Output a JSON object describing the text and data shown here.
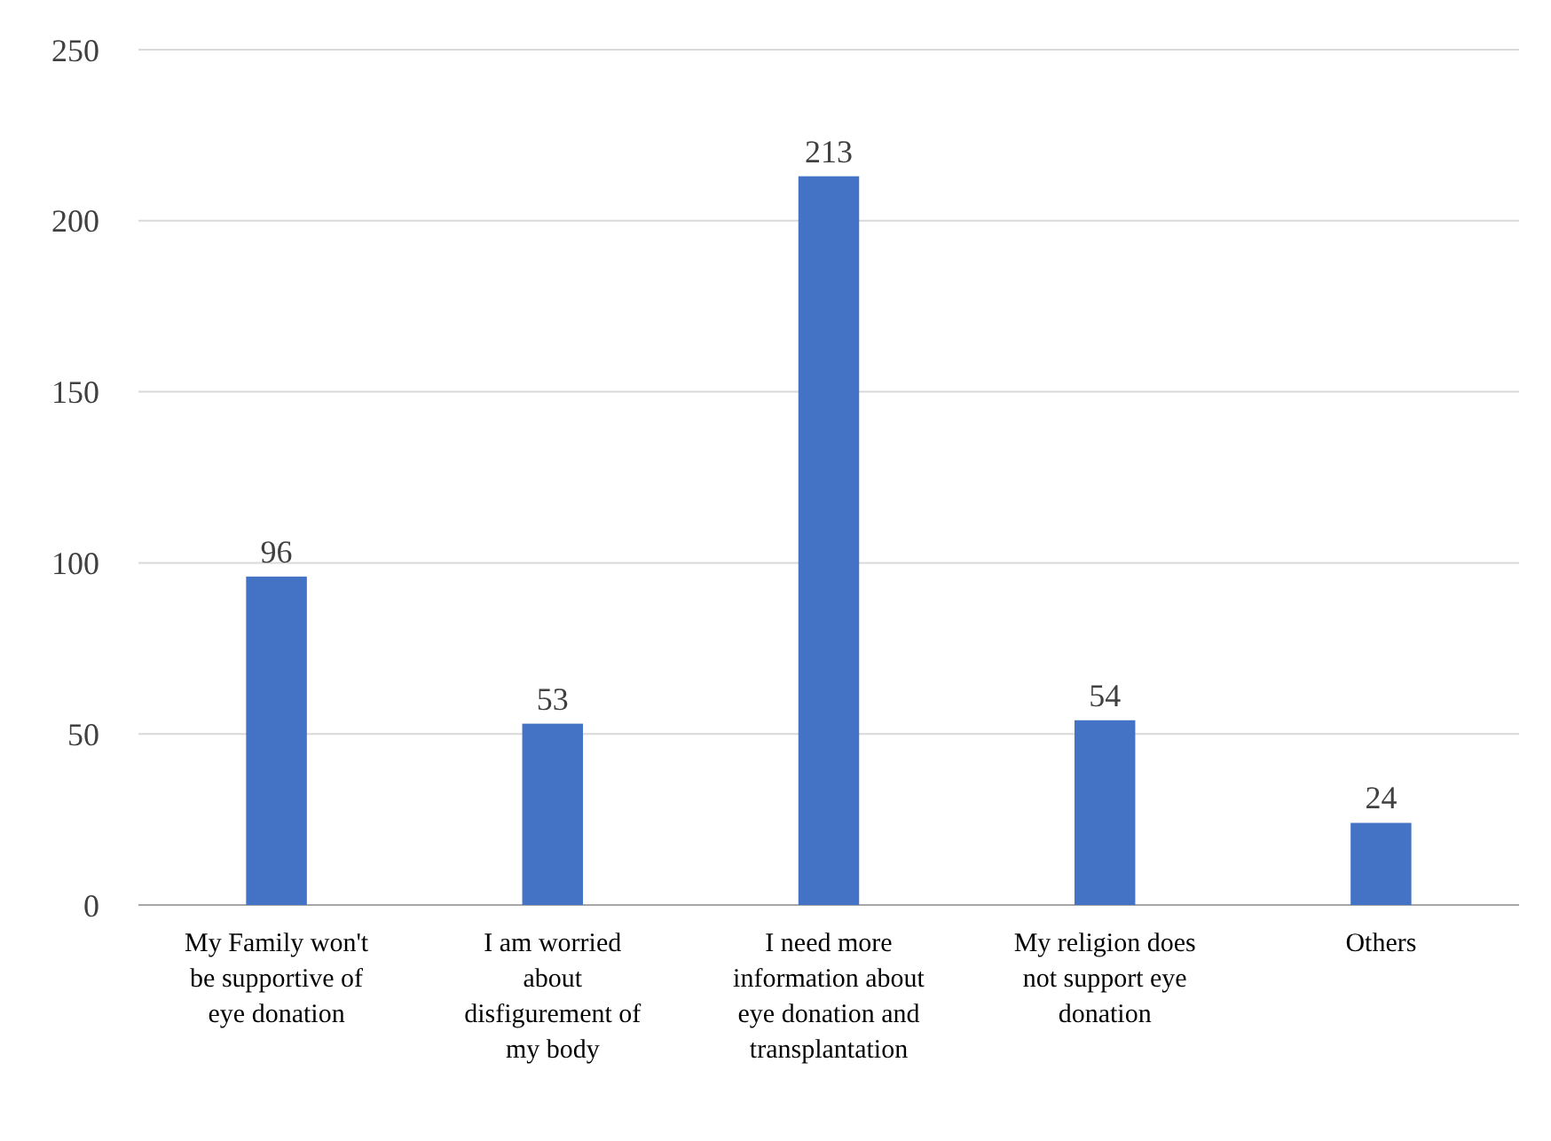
{
  "chart_data": {
    "type": "bar",
    "categories": [
      "My Family won't be supportive of eye donation",
      "I am worried about disfigurement of my body",
      "I need more information about eye donation and transplantation",
      "My religion does not support eye donation",
      "Others"
    ],
    "values": [
      96,
      53,
      213,
      54,
      24
    ],
    "color": "#4472c4",
    "ylim": [
      0,
      250
    ],
    "yticks": [
      0,
      50,
      100,
      150,
      200,
      250
    ],
    "grid": "y",
    "data_labels": true
  }
}
